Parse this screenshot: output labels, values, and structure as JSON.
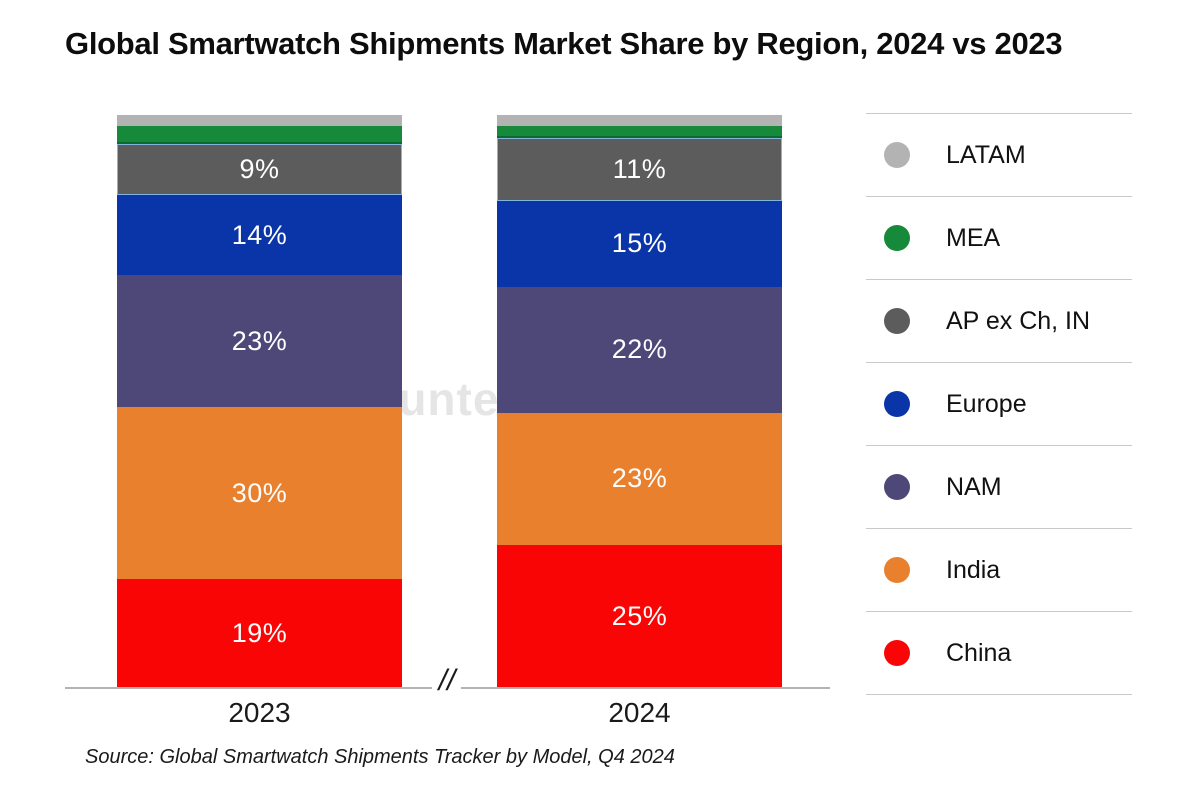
{
  "title": "Global Smartwatch Shipments Market Share by Region, 2024 vs 2023",
  "source_note": "Source: Global Smartwatch Shipments Tracker by Model, Q4 2024",
  "watermark_text": "Counterpoint",
  "axis": {
    "break_symbol": "//",
    "line_color": "#b3b3b3"
  },
  "chart_data": {
    "type": "bar",
    "stacked": true,
    "orientation": "vertical",
    "grid": false,
    "legend_position": "right",
    "ylim": [
      0,
      100
    ],
    "unit": "%",
    "categories": [
      "2023",
      "2024"
    ],
    "series": [
      {
        "name": "China",
        "color": "#fa0505",
        "values": [
          19,
          25
        ],
        "value_labels": [
          "19%",
          "25%"
        ]
      },
      {
        "name": "India",
        "color": "#e8802d",
        "values": [
          30,
          23
        ],
        "value_labels": [
          "30%",
          "23%"
        ]
      },
      {
        "name": "NAM",
        "color": "#4e4878",
        "values": [
          23,
          22
        ],
        "value_labels": [
          "23%",
          "22%"
        ]
      },
      {
        "name": "Europe",
        "color": "#0a35a8",
        "values": [
          14,
          15
        ],
        "value_labels": [
          "14%",
          "15%"
        ]
      },
      {
        "name": "AP ex Ch, IN",
        "color": "#5c5c5c",
        "values": [
          9,
          11
        ],
        "value_labels": [
          "9%",
          "11%"
        ],
        "border": "#82b4dc"
      },
      {
        "name": "MEA",
        "color": "#17893b",
        "values": [
          3,
          2
        ],
        "value_labels": [
          "",
          ""
        ],
        "edge_bottom": "#0c6b2c"
      },
      {
        "name": "LATAM",
        "color": "#b3b3b3",
        "values": [
          2,
          2
        ],
        "value_labels": [
          "",
          ""
        ]
      }
    ],
    "legend_order_top_to_bottom": [
      "LATAM",
      "MEA",
      "AP ex Ch, IN",
      "Europe",
      "NAM",
      "India",
      "China"
    ]
  }
}
